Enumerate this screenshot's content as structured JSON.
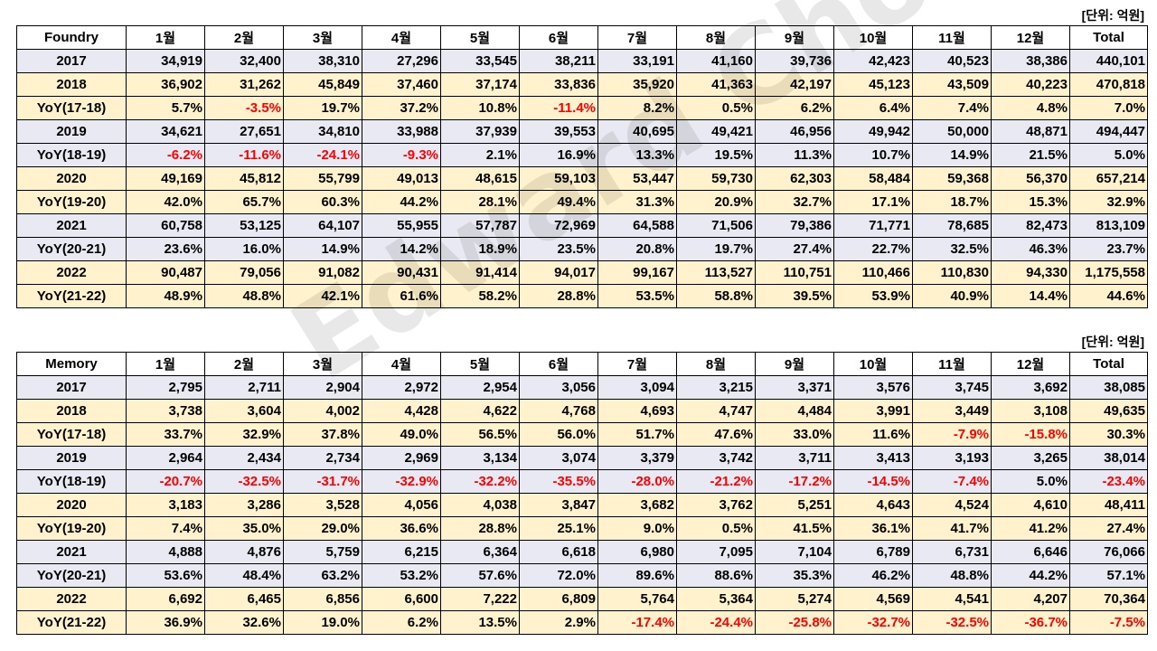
{
  "unit_label": "[단위: 억원]",
  "watermark": "Edward Choi",
  "tables": [
    {
      "name": "foundry",
      "header": [
        "Foundry",
        "1월",
        "2월",
        "3월",
        "4월",
        "5월",
        "6월",
        "7월",
        "8월",
        "9월",
        "10월",
        "11월",
        "12월",
        "Total"
      ],
      "rows": [
        {
          "cls": "r-year",
          "cells": [
            "2017",
            "34,919",
            "32,400",
            "38,310",
            "27,296",
            "33,545",
            "38,211",
            "33,191",
            "41,160",
            "39,736",
            "42,423",
            "40,523",
            "38,386",
            "440,101"
          ]
        },
        {
          "cls": "r-alt",
          "cells": [
            "2018",
            "36,902",
            "31,262",
            "45,849",
            "37,460",
            "37,174",
            "33,836",
            "35,920",
            "41,363",
            "42,197",
            "45,123",
            "43,509",
            "40,223",
            "470,818"
          ]
        },
        {
          "cls": "r-alt",
          "cells": [
            "YoY(17-18)",
            "5.7%",
            "-3.5%",
            "19.7%",
            "37.2%",
            "10.8%",
            "-11.4%",
            "8.2%",
            "0.5%",
            "6.2%",
            "6.4%",
            "7.4%",
            "4.8%",
            "7.0%"
          ]
        },
        {
          "cls": "r-year",
          "cells": [
            "2019",
            "34,621",
            "27,651",
            "34,810",
            "33,988",
            "37,939",
            "39,553",
            "40,695",
            "49,421",
            "46,956",
            "49,942",
            "50,000",
            "48,871",
            "494,447"
          ]
        },
        {
          "cls": "r-year",
          "cells": [
            "YoY(18-19)",
            "-6.2%",
            "-11.6%",
            "-24.1%",
            "-9.3%",
            "2.1%",
            "16.9%",
            "13.3%",
            "19.5%",
            "11.3%",
            "10.7%",
            "14.9%",
            "21.5%",
            "5.0%"
          ]
        },
        {
          "cls": "r-alt",
          "cells": [
            "2020",
            "49,169",
            "45,812",
            "55,799",
            "49,013",
            "48,615",
            "59,103",
            "53,447",
            "59,730",
            "62,303",
            "58,484",
            "59,368",
            "56,370",
            "657,214"
          ]
        },
        {
          "cls": "r-alt",
          "cells": [
            "YoY(19-20)",
            "42.0%",
            "65.7%",
            "60.3%",
            "44.2%",
            "28.1%",
            "49.4%",
            "31.3%",
            "20.9%",
            "32.7%",
            "17.1%",
            "18.7%",
            "15.3%",
            "32.9%"
          ]
        },
        {
          "cls": "r-year",
          "cells": [
            "2021",
            "60,758",
            "53,125",
            "64,107",
            "55,955",
            "57,787",
            "72,969",
            "64,588",
            "71,506",
            "79,386",
            "71,771",
            "78,685",
            "82,473",
            "813,109"
          ]
        },
        {
          "cls": "r-year",
          "cells": [
            "YoY(20-21)",
            "23.6%",
            "16.0%",
            "14.9%",
            "14.2%",
            "18.9%",
            "23.5%",
            "20.8%",
            "19.7%",
            "27.4%",
            "22.7%",
            "32.5%",
            "46.3%",
            "23.7%"
          ]
        },
        {
          "cls": "r-alt",
          "cells": [
            "2022",
            "90,487",
            "79,056",
            "91,082",
            "90,431",
            "91,414",
            "94,017",
            "99,167",
            "113,527",
            "110,751",
            "110,466",
            "110,830",
            "94,330",
            "1,175,558"
          ]
        },
        {
          "cls": "r-alt",
          "cells": [
            "YoY(21-22)",
            "48.9%",
            "48.8%",
            "42.1%",
            "61.6%",
            "58.2%",
            "28.8%",
            "53.5%",
            "58.8%",
            "39.5%",
            "53.9%",
            "40.9%",
            "14.4%",
            "44.6%"
          ]
        }
      ]
    },
    {
      "name": "memory",
      "header": [
        "Memory",
        "1월",
        "2월",
        "3월",
        "4월",
        "5월",
        "6월",
        "7월",
        "8월",
        "9월",
        "10월",
        "11월",
        "12월",
        "Total"
      ],
      "rows": [
        {
          "cls": "r-year",
          "cells": [
            "2017",
            "2,795",
            "2,711",
            "2,904",
            "2,972",
            "2,954",
            "3,056",
            "3,094",
            "3,215",
            "3,371",
            "3,576",
            "3,745",
            "3,692",
            "38,085"
          ]
        },
        {
          "cls": "r-alt",
          "cells": [
            "2018",
            "3,738",
            "3,604",
            "4,002",
            "4,428",
            "4,622",
            "4,768",
            "4,693",
            "4,747",
            "4,484",
            "3,991",
            "3,449",
            "3,108",
            "49,635"
          ]
        },
        {
          "cls": "r-alt",
          "cells": [
            "YoY(17-18)",
            "33.7%",
            "32.9%",
            "37.8%",
            "49.0%",
            "56.5%",
            "56.0%",
            "51.7%",
            "47.6%",
            "33.0%",
            "11.6%",
            "-7.9%",
            "-15.8%",
            "30.3%"
          ]
        },
        {
          "cls": "r-year",
          "cells": [
            "2019",
            "2,964",
            "2,434",
            "2,734",
            "2,969",
            "3,134",
            "3,074",
            "3,379",
            "3,742",
            "3,711",
            "3,413",
            "3,193",
            "3,265",
            "38,014"
          ]
        },
        {
          "cls": "r-year",
          "cells": [
            "YoY(18-19)",
            "-20.7%",
            "-32.5%",
            "-31.7%",
            "-32.9%",
            "-32.2%",
            "-35.5%",
            "-28.0%",
            "-21.2%",
            "-17.2%",
            "-14.5%",
            "-7.4%",
            "5.0%",
            "-23.4%"
          ]
        },
        {
          "cls": "r-alt",
          "cells": [
            "2020",
            "3,183",
            "3,286",
            "3,528",
            "4,056",
            "4,038",
            "3,847",
            "3,682",
            "3,762",
            "5,251",
            "4,643",
            "4,524",
            "4,610",
            "48,411"
          ]
        },
        {
          "cls": "r-alt",
          "cells": [
            "YoY(19-20)",
            "7.4%",
            "35.0%",
            "29.0%",
            "36.6%",
            "28.8%",
            "25.1%",
            "9.0%",
            "0.5%",
            "41.5%",
            "36.1%",
            "41.7%",
            "41.2%",
            "27.4%"
          ]
        },
        {
          "cls": "r-year",
          "cells": [
            "2021",
            "4,888",
            "4,876",
            "5,759",
            "6,215",
            "6,364",
            "6,618",
            "6,980",
            "7,095",
            "7,104",
            "6,789",
            "6,731",
            "6,646",
            "76,066"
          ]
        },
        {
          "cls": "r-year",
          "cells": [
            "YoY(20-21)",
            "53.6%",
            "48.4%",
            "63.2%",
            "53.2%",
            "57.6%",
            "72.0%",
            "89.6%",
            "88.6%",
            "35.3%",
            "46.2%",
            "48.8%",
            "44.2%",
            "57.1%"
          ]
        },
        {
          "cls": "r-alt",
          "cells": [
            "2022",
            "6,692",
            "6,465",
            "6,856",
            "6,600",
            "7,222",
            "6,809",
            "5,764",
            "5,364",
            "5,274",
            "4,569",
            "4,541",
            "4,207",
            "70,364"
          ]
        },
        {
          "cls": "r-alt",
          "cells": [
            "YoY(21-22)",
            "36.9%",
            "32.6%",
            "19.0%",
            "6.2%",
            "13.5%",
            "2.9%",
            "-17.4%",
            "-24.4%",
            "-25.8%",
            "-32.7%",
            "-32.5%",
            "-36.7%",
            "-7.5%"
          ]
        }
      ]
    }
  ]
}
